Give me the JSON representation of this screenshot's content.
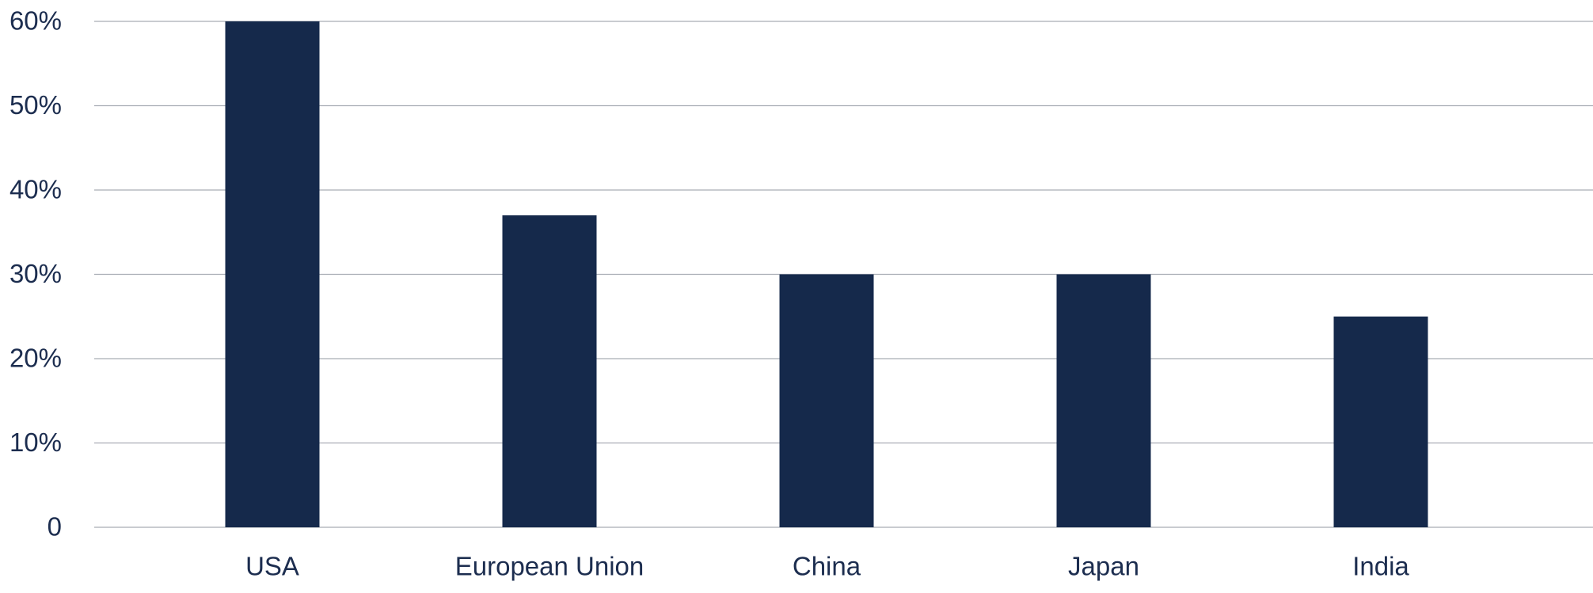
{
  "chart_data": {
    "type": "bar",
    "categories": [
      "USA",
      "European Union",
      "China",
      "Japan",
      "India"
    ],
    "values": [
      60,
      37,
      30,
      30,
      25
    ],
    "color": "#15294b",
    "ylim": [
      0,
      60
    ],
    "yticks": [
      0,
      {
        "value": 10,
        "label": "10%"
      },
      {
        "value": 20,
        "label": "20%"
      },
      {
        "value": 30,
        "label": "30%"
      },
      {
        "value": 40,
        "label": "40%"
      },
      {
        "value": 50,
        "label": "50%"
      },
      {
        "value": 60,
        "label": "60%"
      }
    ],
    "grid": true
  }
}
